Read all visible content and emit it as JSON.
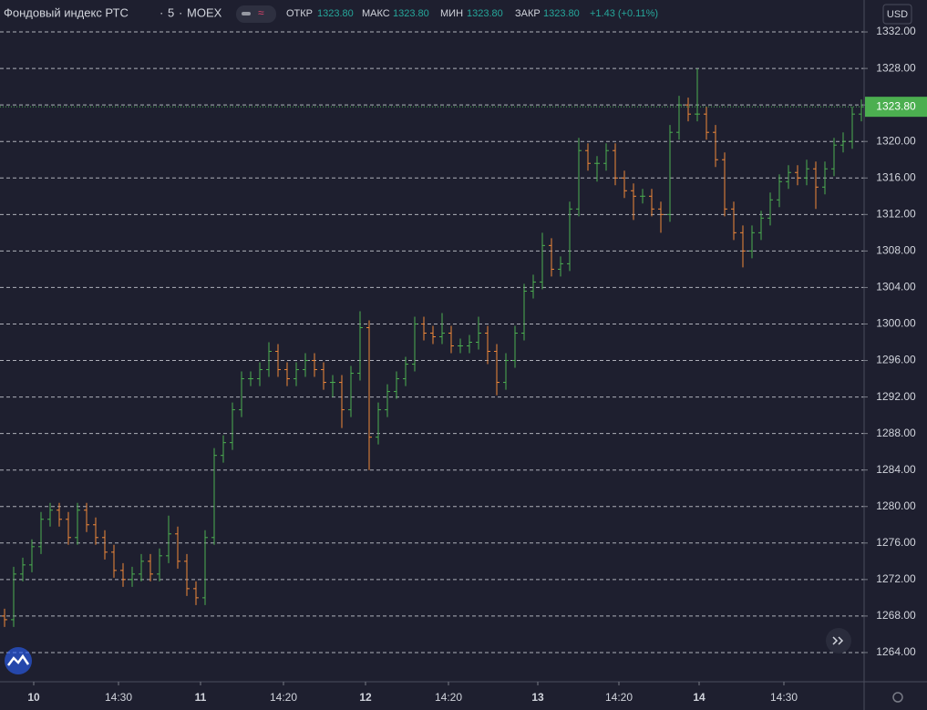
{
  "chart_data": {
    "type": "ohlc",
    "title": "Фондовый индекс РТС",
    "interval": "5",
    "exchange": "MOEX",
    "currency": "USD",
    "legend": {
      "open_label": "ОТКР",
      "open": "1323.80",
      "high_label": "МАКС",
      "high": "1323.80",
      "low_label": "МИН",
      "low": "1323.80",
      "close_label": "ЗАКР",
      "close": "1323.80",
      "change": "+1.43 (+0.11%)"
    },
    "last_price": {
      "value": 1323.8,
      "label": "1323.80"
    },
    "up_color": "#4caf50",
    "down_color": "#f0883a",
    "grid": true,
    "ylim": [
      1260.8,
      1335.5
    ],
    "yticks": [
      {
        "value": 1264,
        "label": "1264.00"
      },
      {
        "value": 1268,
        "label": "1268.00"
      },
      {
        "value": 1272,
        "label": "1272.00"
      },
      {
        "value": 1276,
        "label": "1276.00"
      },
      {
        "value": 1280,
        "label": "1280.00"
      },
      {
        "value": 1284,
        "label": "1284.00"
      },
      {
        "value": 1288,
        "label": "1288.00"
      },
      {
        "value": 1292,
        "label": "1292.00"
      },
      {
        "value": 1296,
        "label": "1296.00"
      },
      {
        "value": 1300,
        "label": "1300.00"
      },
      {
        "value": 1304,
        "label": "1304.00"
      },
      {
        "value": 1308,
        "label": "1308.00"
      },
      {
        "value": 1312,
        "label": "1312.00"
      },
      {
        "value": 1316,
        "label": "1316.00"
      },
      {
        "value": 1320,
        "label": "1320.00"
      },
      {
        "value": 1324,
        "label": "1324.00"
      },
      {
        "value": 1328,
        "label": "1328.00"
      },
      {
        "value": 1332,
        "label": "1332.00"
      }
    ],
    "xlim": [
      -0.5,
      94
    ],
    "xticks": [
      {
        "value": 3.2,
        "label": "10"
      },
      {
        "value": 12.5,
        "label": "14:30"
      },
      {
        "value": 21.5,
        "label": "11"
      },
      {
        "value": 30.6,
        "label": "14:20"
      },
      {
        "value": 39.6,
        "label": "12"
      },
      {
        "value": 48.7,
        "label": "14:20"
      },
      {
        "value": 58.5,
        "label": "13"
      },
      {
        "value": 67.4,
        "label": "14:20"
      },
      {
        "value": 76.2,
        "label": "14"
      },
      {
        "value": 85.5,
        "label": "14:30"
      }
    ],
    "open": [
      1268.0,
      1267.6,
      1272.6,
      1273.6,
      1275.6,
      1278.6,
      1279.6,
      1278.6,
      1276.6,
      1279.6,
      1278.0,
      1276.6,
      1275.0,
      1273.0,
      1272.0,
      1272.6,
      1274.0,
      1272.6,
      1274.6,
      1277.0,
      1274.0,
      1271.0,
      1270.0,
      1276.6,
      1285.6,
      1287.0,
      1290.6,
      1294.0,
      1294.0,
      1295.0,
      1297.0,
      1295.0,
      1294.0,
      1295.0,
      1296.0,
      1295.0,
      1293.6,
      1293.6,
      1290.6,
      1294.6,
      1299.6,
      1287.6,
      1290.6,
      1292.6,
      1294.0,
      1295.6,
      1300.0,
      1299.0,
      1298.6,
      1299.0,
      1297.6,
      1297.6,
      1298.0,
      1299.0,
      1297.0,
      1293.6,
      1296.0,
      1299.0,
      1303.6,
      1304.6,
      1308.6,
      1306.0,
      1306.6,
      1312.6,
      1319.0,
      1317.6,
      1317.6,
      1319.0,
      1316.0,
      1314.6,
      1314.0,
      1314.0,
      1312.6,
      1312.0,
      1321.0,
      1324.0,
      1323.0,
      1323.0,
      1321.0,
      1318.0,
      1312.6,
      1310.0,
      1308.0,
      1310.0,
      1311.6,
      1313.6,
      1315.6,
      1316.6,
      1316.0,
      1317.0,
      1315.0,
      1317.0,
      1319.6,
      1320.0,
      1323.0
    ],
    "high": [
      1268.8,
      1273.4,
      1274.4,
      1276.4,
      1279.4,
      1280.4,
      1280.4,
      1279.4,
      1280.4,
      1280.4,
      1278.8,
      1277.4,
      1275.8,
      1273.8,
      1273.4,
      1274.8,
      1274.8,
      1275.4,
      1279.0,
      1277.8,
      1274.8,
      1271.8,
      1277.4,
      1286.4,
      1287.8,
      1291.4,
      1294.8,
      1294.8,
      1295.8,
      1298.0,
      1297.8,
      1295.8,
      1295.8,
      1296.8,
      1296.8,
      1295.8,
      1294.4,
      1294.4,
      1295.4,
      1301.4,
      1300.4,
      1291.4,
      1293.4,
      1294.8,
      1296.4,
      1300.8,
      1300.8,
      1299.8,
      1301.2,
      1299.8,
      1298.4,
      1298.8,
      1300.8,
      1299.8,
      1297.8,
      1296.8,
      1299.8,
      1304.4,
      1305.4,
      1310.0,
      1309.4,
      1307.4,
      1313.4,
      1320.4,
      1319.8,
      1318.4,
      1319.8,
      1319.8,
      1316.8,
      1315.4,
      1314.8,
      1314.8,
      1313.4,
      1321.8,
      1325.0,
      1324.8,
      1328.0,
      1323.8,
      1321.8,
      1318.8,
      1313.4,
      1310.8,
      1310.8,
      1312.4,
      1314.4,
      1316.4,
      1317.4,
      1317.4,
      1318.0,
      1317.8,
      1317.8,
      1320.4,
      1321.0,
      1323.8,
      1324.6
    ],
    "low": [
      1266.8,
      1266.8,
      1271.8,
      1272.8,
      1274.8,
      1277.8,
      1277.8,
      1275.8,
      1275.8,
      1277.2,
      1275.8,
      1274.2,
      1272.2,
      1271.2,
      1271.2,
      1271.8,
      1271.8,
      1271.8,
      1273.8,
      1273.2,
      1270.2,
      1269.2,
      1269.2,
      1275.8,
      1284.8,
      1286.2,
      1289.8,
      1293.2,
      1293.2,
      1294.2,
      1294.2,
      1293.2,
      1293.2,
      1294.2,
      1294.2,
      1292.8,
      1292.0,
      1288.6,
      1289.8,
      1293.8,
      1284.0,
      1286.8,
      1289.8,
      1291.8,
      1293.2,
      1294.8,
      1298.2,
      1297.8,
      1297.8,
      1296.8,
      1296.8,
      1296.8,
      1297.2,
      1295.6,
      1292.2,
      1292.8,
      1295.2,
      1298.2,
      1302.8,
      1303.8,
      1305.2,
      1305.2,
      1305.8,
      1311.8,
      1316.8,
      1315.6,
      1316.8,
      1315.2,
      1313.8,
      1311.4,
      1313.2,
      1311.8,
      1310.0,
      1311.2,
      1320.2,
      1322.2,
      1322.2,
      1320.2,
      1317.2,
      1311.8,
      1309.2,
      1306.2,
      1307.2,
      1309.2,
      1310.8,
      1312.8,
      1314.8,
      1315.2,
      1315.2,
      1312.6,
      1314.2,
      1316.2,
      1318.8,
      1319.2,
      1322.2
    ],
    "close": [
      1267.6,
      1272.6,
      1273.6,
      1275.6,
      1278.6,
      1279.6,
      1278.6,
      1276.6,
      1279.6,
      1278.0,
      1276.6,
      1275.0,
      1273.0,
      1272.0,
      1272.6,
      1274.0,
      1272.6,
      1274.6,
      1277.0,
      1274.0,
      1271.0,
      1270.0,
      1276.6,
      1285.6,
      1287.0,
      1290.6,
      1294.0,
      1294.0,
      1295.0,
      1297.0,
      1295.0,
      1294.0,
      1295.0,
      1296.0,
      1295.0,
      1293.6,
      1293.6,
      1290.6,
      1294.6,
      1299.6,
      1287.6,
      1290.6,
      1292.6,
      1294.0,
      1295.6,
      1300.0,
      1299.0,
      1298.6,
      1299.0,
      1297.6,
      1297.6,
      1298.0,
      1299.0,
      1297.0,
      1293.6,
      1296.0,
      1299.0,
      1303.6,
      1304.6,
      1308.6,
      1306.0,
      1306.6,
      1312.6,
      1319.0,
      1317.6,
      1317.6,
      1319.0,
      1316.0,
      1314.6,
      1314.0,
      1314.0,
      1312.6,
      1312.0,
      1321.0,
      1324.0,
      1323.0,
      1323.0,
      1321.0,
      1318.0,
      1312.6,
      1310.0,
      1308.0,
      1310.0,
      1311.6,
      1313.6,
      1315.6,
      1316.6,
      1316.0,
      1317.0,
      1315.0,
      1317.0,
      1319.6,
      1320.0,
      1323.0,
      1323.8
    ]
  }
}
